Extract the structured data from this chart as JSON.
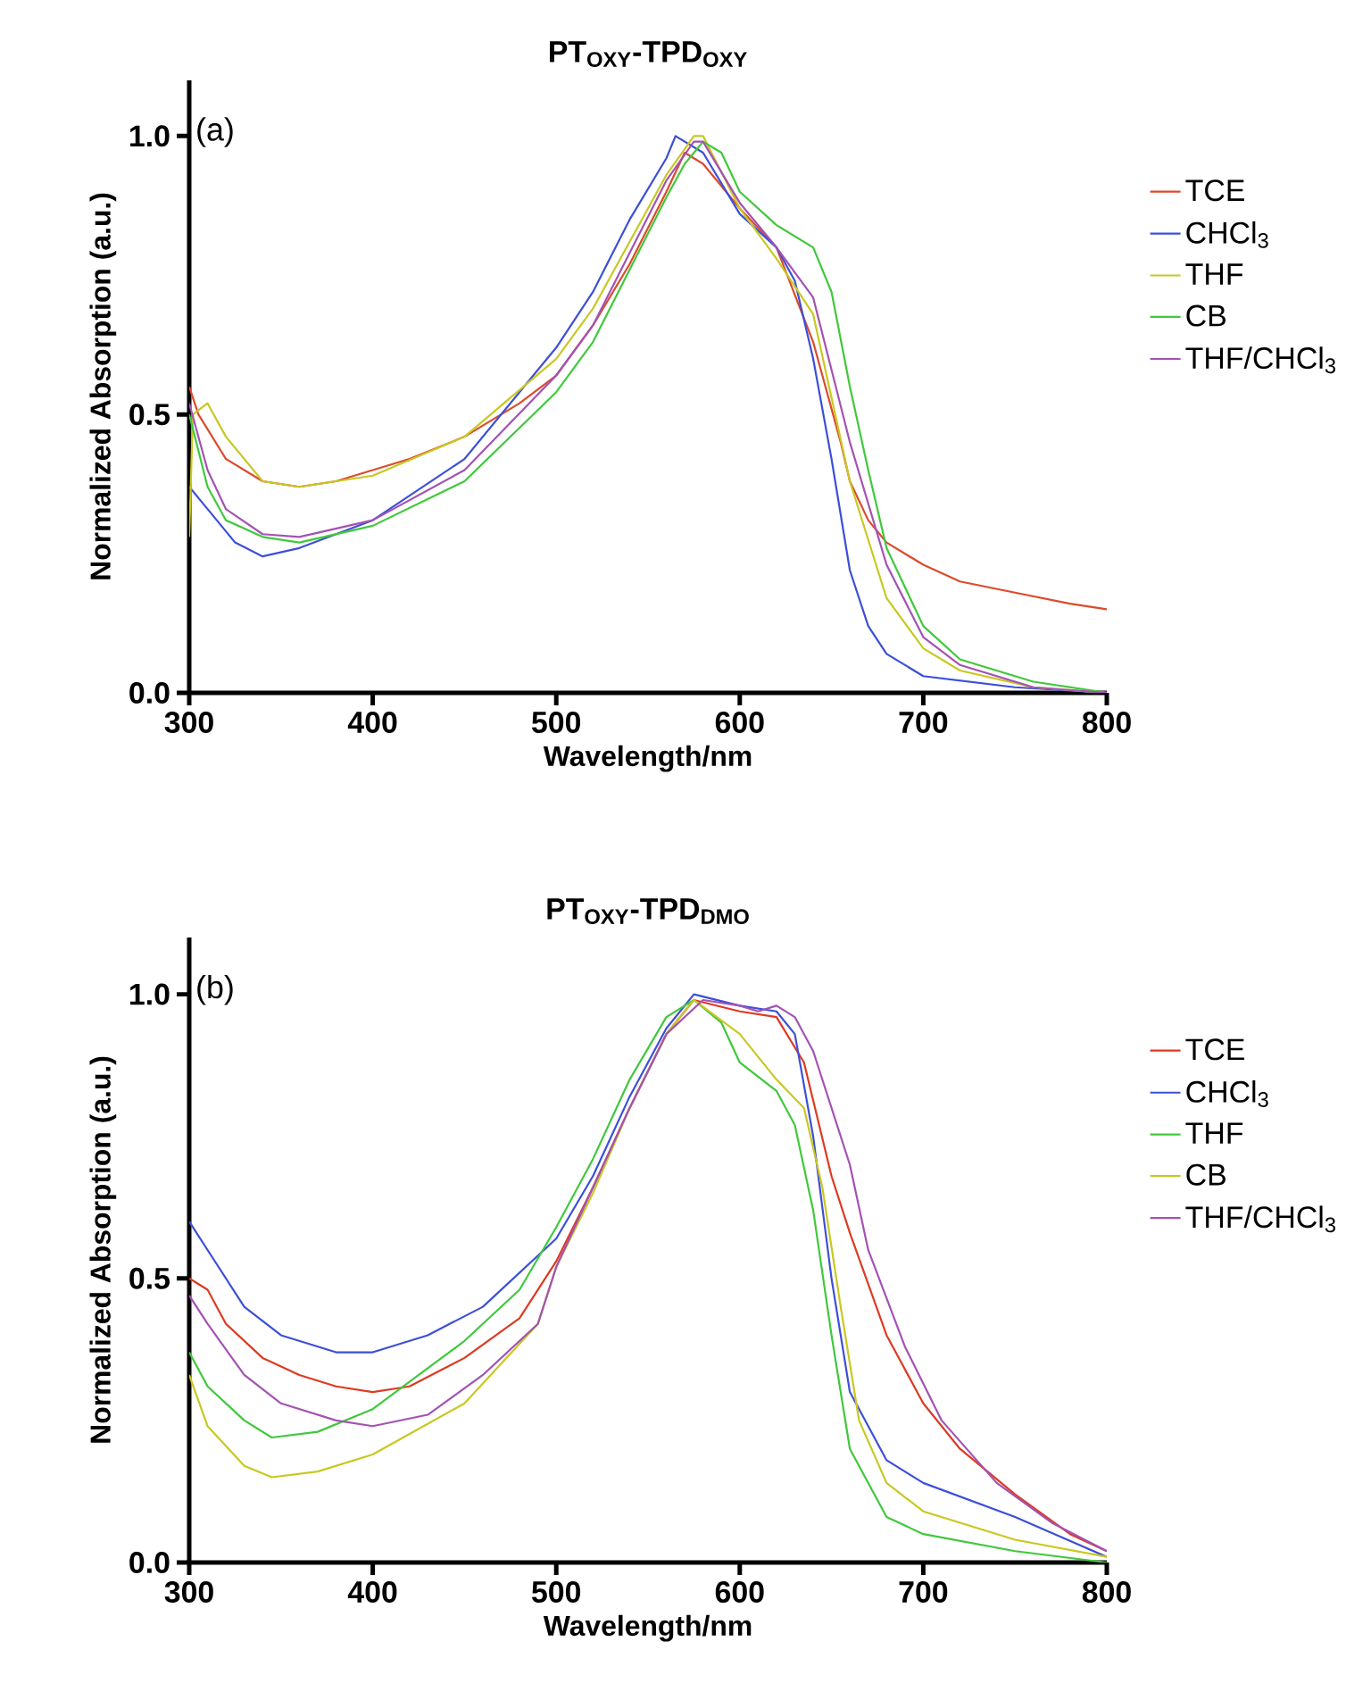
{
  "chart_data": [
    {
      "type": "line",
      "title": "PT$_{OXY}$-TPD$_{OXY}$",
      "xlabel": "Wavelength/nm",
      "ylabel": "Normalized Absorption (a.u.)",
      "annotations": [
        "(a)"
      ],
      "xlim": [
        300,
        800
      ],
      "ylim": [
        0,
        1.1
      ],
      "xticks": [
        300,
        400,
        500,
        600,
        700,
        800
      ],
      "yticks": [
        {
          "value": 0,
          "label": "0.0"
        },
        {
          "value": 0.5,
          "label": "0.5"
        },
        {
          "value": 1,
          "label": "1.0"
        }
      ],
      "legend": "right",
      "grid": false,
      "series": [
        {
          "name": "TCE",
          "color": "#dd4a2a",
          "x": [
            300,
            305,
            320,
            340,
            360,
            380,
            400,
            420,
            450,
            480,
            500,
            520,
            540,
            560,
            570,
            580,
            600,
            620,
            640,
            655,
            660,
            670,
            680,
            700,
            720,
            750,
            780,
            800
          ],
          "values": [
            0.55,
            0.5,
            0.42,
            0.38,
            0.37,
            0.38,
            0.4,
            0.42,
            0.46,
            0.52,
            0.57,
            0.66,
            0.77,
            0.9,
            0.97,
            0.95,
            0.87,
            0.8,
            0.63,
            0.45,
            0.38,
            0.31,
            0.27,
            0.23,
            0.2,
            0.18,
            0.16,
            0.15
          ]
        },
        {
          "name": "CHCl$_{3}$",
          "color": "#3c4fd8",
          "x": [
            300,
            310,
            325,
            340,
            360,
            400,
            450,
            500,
            520,
            540,
            560,
            565,
            580,
            600,
            620,
            630,
            640,
            650,
            660,
            670,
            680,
            700,
            750,
            800
          ],
          "values": [
            0.37,
            0.33,
            0.27,
            0.245,
            0.26,
            0.31,
            0.42,
            0.62,
            0.72,
            0.85,
            0.96,
            1.0,
            0.97,
            0.86,
            0.8,
            0.74,
            0.6,
            0.42,
            0.22,
            0.12,
            0.07,
            0.03,
            0.01,
            0.0
          ]
        },
        {
          "name": "THF",
          "color": "#c8c822",
          "x": [
            300,
            302,
            310,
            320,
            340,
            360,
            400,
            450,
            500,
            520,
            540,
            560,
            575,
            580,
            600,
            620,
            640,
            660,
            680,
            700,
            720,
            760,
            800
          ],
          "values": [
            0.28,
            0.5,
            0.52,
            0.46,
            0.38,
            0.37,
            0.39,
            0.46,
            0.6,
            0.69,
            0.81,
            0.93,
            1.0,
            1.0,
            0.87,
            0.78,
            0.68,
            0.38,
            0.17,
            0.08,
            0.04,
            0.01,
            0.0
          ]
        },
        {
          "name": "CB",
          "color": "#40c83c",
          "x": [
            300,
            310,
            320,
            340,
            360,
            400,
            450,
            500,
            520,
            540,
            560,
            570,
            580,
            590,
            600,
            620,
            640,
            650,
            660,
            670,
            680,
            700,
            720,
            760,
            800
          ],
          "values": [
            0.5,
            0.37,
            0.31,
            0.28,
            0.27,
            0.3,
            0.38,
            0.54,
            0.63,
            0.76,
            0.89,
            0.95,
            0.99,
            0.97,
            0.9,
            0.84,
            0.8,
            0.72,
            0.55,
            0.4,
            0.26,
            0.12,
            0.06,
            0.02,
            0.0
          ]
        },
        {
          "name": "THF/CHCl$_{3}$",
          "color": "#a352b3",
          "x": [
            300,
            310,
            320,
            340,
            360,
            400,
            450,
            500,
            520,
            540,
            560,
            575,
            580,
            600,
            620,
            640,
            660,
            680,
            700,
            720,
            760,
            800
          ],
          "values": [
            0.52,
            0.4,
            0.33,
            0.285,
            0.28,
            0.31,
            0.4,
            0.57,
            0.66,
            0.79,
            0.92,
            0.99,
            0.99,
            0.88,
            0.8,
            0.71,
            0.45,
            0.23,
            0.1,
            0.05,
            0.01,
            0.0
          ]
        }
      ]
    },
    {
      "type": "line",
      "title": "PT$_{OXY}$-TPD$_{DMO}$",
      "xlabel": "Wavelength/nm",
      "ylabel": "Normalized Absorption (a.u.)",
      "annotations": [
        "(b)"
      ],
      "xlim": [
        300,
        800
      ],
      "ylim": [
        0,
        1.1
      ],
      "xticks": [
        300,
        400,
        500,
        600,
        700,
        800
      ],
      "yticks": [
        {
          "value": 0,
          "label": "0.0"
        },
        {
          "value": 0.5,
          "label": "0.5"
        },
        {
          "value": 1,
          "label": "1.0"
        }
      ],
      "legend": "right",
      "grid": false,
      "series": [
        {
          "name": "TCE",
          "color": "#dd3a22",
          "x": [
            300,
            310,
            320,
            340,
            360,
            380,
            400,
            420,
            450,
            480,
            500,
            520,
            540,
            560,
            575,
            600,
            620,
            635,
            650,
            660,
            680,
            700,
            720,
            750,
            780,
            800
          ],
          "values": [
            0.5,
            0.48,
            0.42,
            0.36,
            0.33,
            0.31,
            0.3,
            0.31,
            0.36,
            0.43,
            0.53,
            0.66,
            0.8,
            0.93,
            0.99,
            0.97,
            0.96,
            0.88,
            0.68,
            0.58,
            0.4,
            0.28,
            0.2,
            0.12,
            0.05,
            0.02
          ]
        },
        {
          "name": "CHCl$_{3}$",
          "color": "#3c4fd8",
          "x": [
            300,
            310,
            330,
            350,
            380,
            400,
            430,
            460,
            500,
            520,
            540,
            560,
            575,
            600,
            620,
            630,
            640,
            650,
            660,
            680,
            700,
            750,
            800
          ],
          "values": [
            0.6,
            0.55,
            0.45,
            0.4,
            0.37,
            0.37,
            0.4,
            0.45,
            0.57,
            0.68,
            0.82,
            0.94,
            1.0,
            0.98,
            0.97,
            0.93,
            0.75,
            0.5,
            0.3,
            0.18,
            0.14,
            0.08,
            0.01
          ]
        },
        {
          "name": "THF",
          "color": "#40c83c",
          "x": [
            300,
            310,
            330,
            345,
            370,
            400,
            450,
            480,
            500,
            520,
            540,
            560,
            575,
            590,
            600,
            620,
            630,
            640,
            650,
            660,
            680,
            700,
            750,
            800
          ],
          "values": [
            0.37,
            0.31,
            0.25,
            0.22,
            0.23,
            0.27,
            0.39,
            0.48,
            0.59,
            0.71,
            0.85,
            0.96,
            0.99,
            0.95,
            0.88,
            0.83,
            0.77,
            0.62,
            0.4,
            0.2,
            0.08,
            0.05,
            0.02,
            0.0
          ]
        },
        {
          "name": "CB",
          "color": "#c8c822",
          "x": [
            300,
            310,
            330,
            345,
            370,
            400,
            450,
            490,
            500,
            520,
            540,
            560,
            575,
            600,
            620,
            635,
            645,
            655,
            665,
            680,
            700,
            750,
            800
          ],
          "values": [
            0.33,
            0.24,
            0.17,
            0.15,
            0.16,
            0.19,
            0.28,
            0.42,
            0.52,
            0.65,
            0.8,
            0.93,
            0.99,
            0.93,
            0.85,
            0.8,
            0.66,
            0.45,
            0.25,
            0.14,
            0.09,
            0.04,
            0.01
          ]
        },
        {
          "name": "THF/CHCl$_{3}$",
          "color": "#a352b3",
          "x": [
            300,
            310,
            330,
            350,
            380,
            400,
            430,
            460,
            490,
            500,
            520,
            540,
            560,
            580,
            600,
            610,
            620,
            630,
            640,
            660,
            670,
            690,
            710,
            740,
            770,
            800
          ],
          "values": [
            0.47,
            0.42,
            0.33,
            0.28,
            0.25,
            0.24,
            0.26,
            0.33,
            0.42,
            0.52,
            0.66,
            0.8,
            0.93,
            0.99,
            0.98,
            0.97,
            0.98,
            0.96,
            0.9,
            0.7,
            0.55,
            0.38,
            0.25,
            0.14,
            0.07,
            0.02
          ]
        }
      ]
    }
  ]
}
